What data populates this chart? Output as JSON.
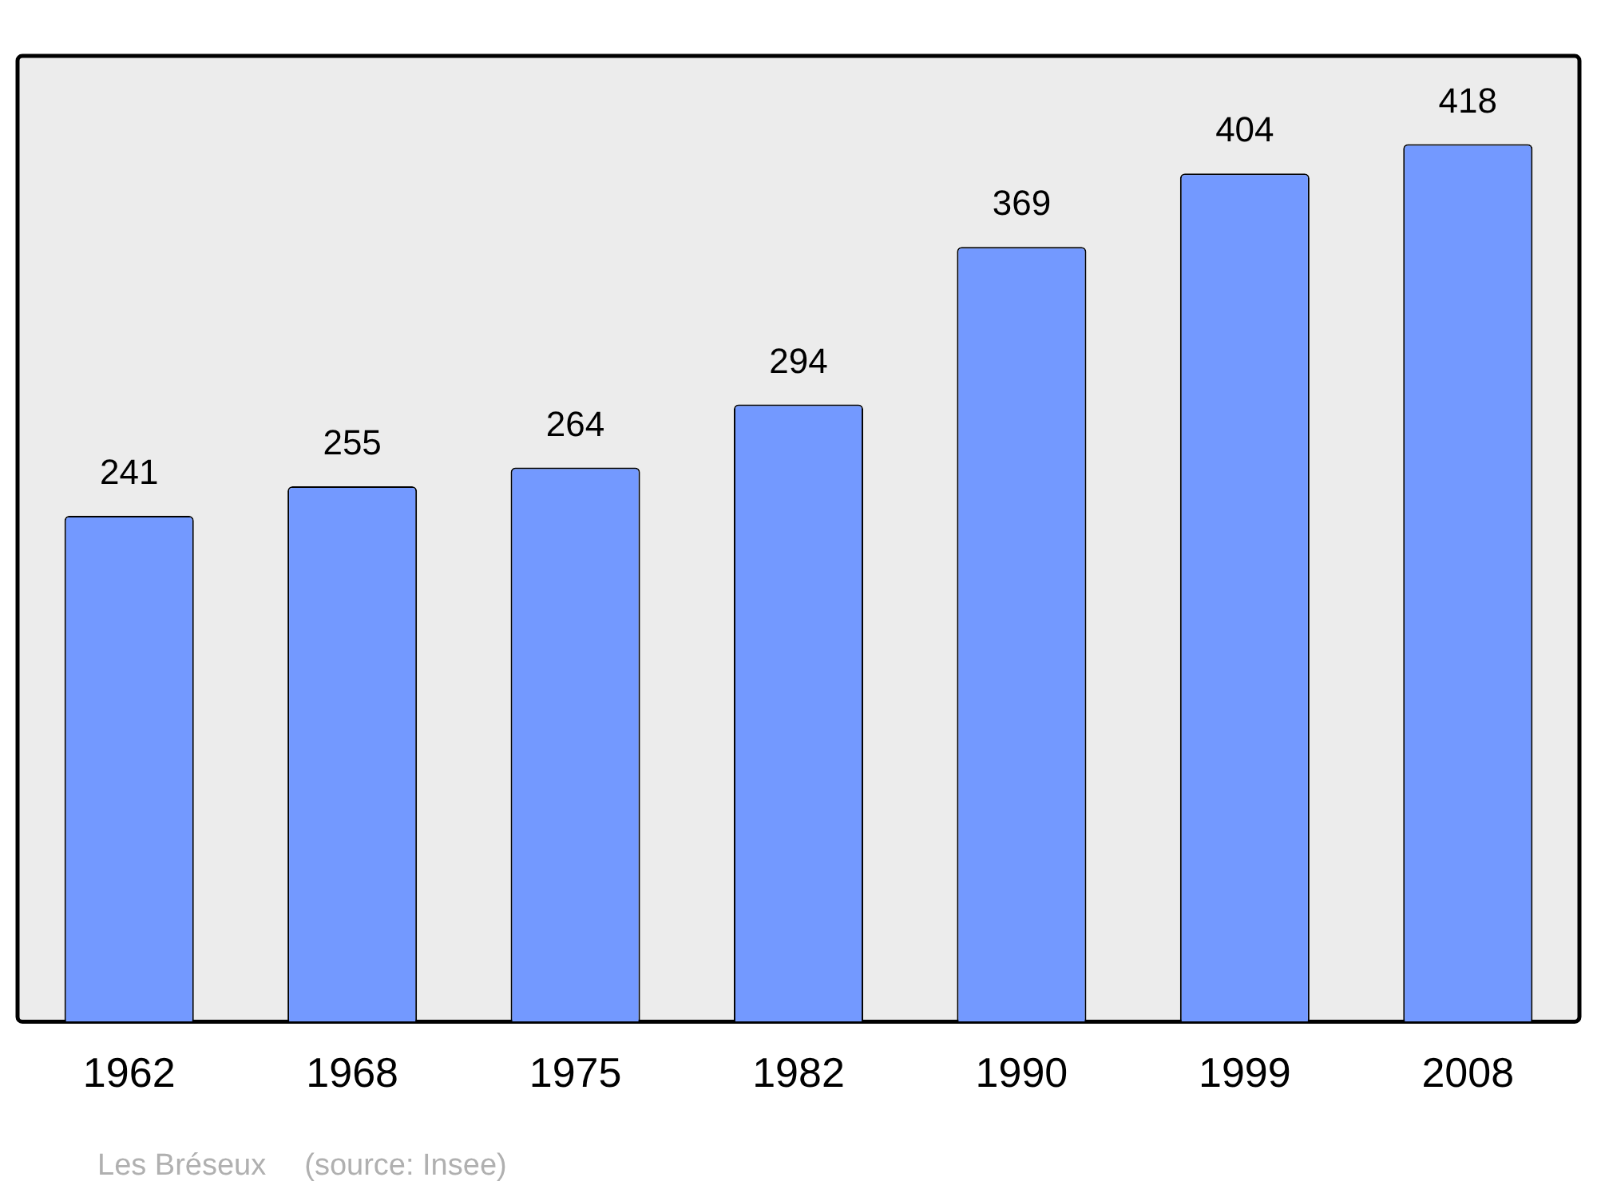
{
  "chart_data": {
    "type": "bar",
    "categories": [
      "1962",
      "1968",
      "1975",
      "1982",
      "1990",
      "1999",
      "2008"
    ],
    "values": [
      241,
      255,
      264,
      294,
      369,
      404,
      418
    ],
    "color": "#7399ff",
    "ylim": [
      0,
      460
    ],
    "tick_labels": "x",
    "grid": false,
    "legend": false,
    "data_labels": true,
    "annotations": [
      "Les Bréseux",
      "(source: Insee)"
    ]
  }
}
